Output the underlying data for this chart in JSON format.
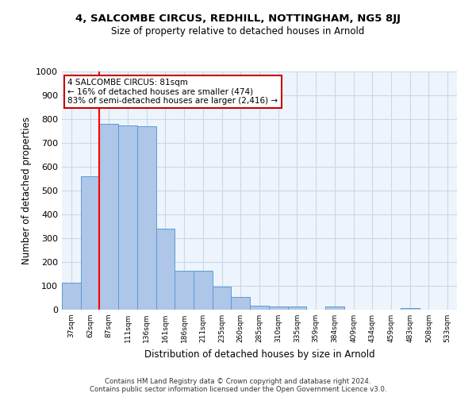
{
  "title": "4, SALCOMBE CIRCUS, REDHILL, NOTTINGHAM, NG5 8JJ",
  "subtitle": "Size of property relative to detached houses in Arnold",
  "xlabel": "Distribution of detached houses by size in Arnold",
  "ylabel": "Number of detached properties",
  "bar_labels": [
    "37sqm",
    "62sqm",
    "87sqm",
    "111sqm",
    "136sqm",
    "161sqm",
    "186sqm",
    "211sqm",
    "235sqm",
    "260sqm",
    "285sqm",
    "310sqm",
    "335sqm",
    "359sqm",
    "384sqm",
    "409sqm",
    "434sqm",
    "459sqm",
    "483sqm",
    "508sqm",
    "533sqm"
  ],
  "bar_values": [
    112,
    560,
    780,
    775,
    770,
    340,
    165,
    165,
    97,
    52,
    18,
    15,
    12,
    0,
    12,
    0,
    0,
    0,
    8,
    0,
    0
  ],
  "bar_color": "#aec6e8",
  "bar_edge_color": "#5b9bd5",
  "grid_color": "#c8d8ea",
  "background_color": "#eef4fb",
  "red_line_x": 1.5,
  "annotation_text": "4 SALCOMBE CIRCUS: 81sqm\n← 16% of detached houses are smaller (474)\n83% of semi-detached houses are larger (2,416) →",
  "annotation_box_color": "#cc0000",
  "footer_line1": "Contains HM Land Registry data © Crown copyright and database right 2024.",
  "footer_line2": "Contains public sector information licensed under the Open Government Licence v3.0.",
  "ylim": [
    0,
    1000
  ],
  "yticks": [
    0,
    100,
    200,
    300,
    400,
    500,
    600,
    700,
    800,
    900,
    1000
  ]
}
